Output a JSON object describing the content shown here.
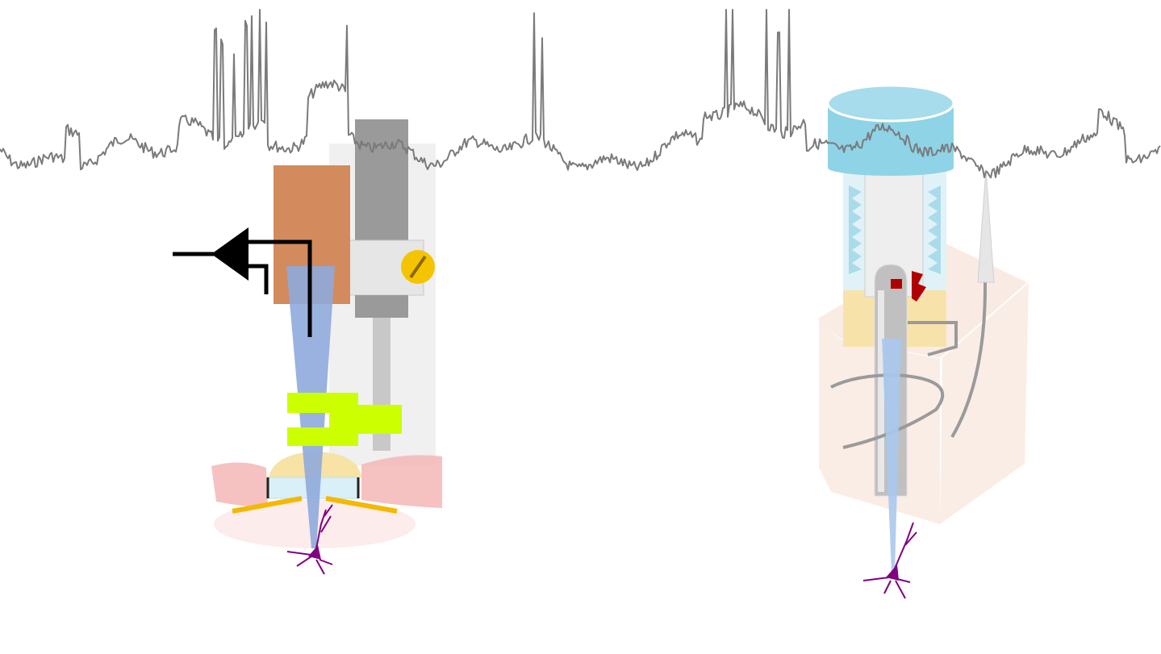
{
  "figure": {
    "background": "#ffffff",
    "trace": {
      "color": "#7a7a7a"
    },
    "left_setup": {
      "headstage_color": "#d38b5d",
      "manipulator_color": "#9a9a9a",
      "pipette_color": "#8faadc",
      "holder_color": "#ccff00",
      "screw_color": "#f5c400",
      "tissue_color": "#f4b6b6",
      "neuron_color": "#800080",
      "arrow_color": "#000000"
    },
    "right_setup": {
      "cap_color": "#8fd3e6",
      "spring_color": "#a9dbeb",
      "collar_color": "#f7e3a6",
      "block_color": "#f9ebe3",
      "wire_color": "#9a9a9a",
      "clamp_color": "#b00000",
      "pipette_color": "#a9c8ee",
      "neuron_color": "#800080"
    }
  }
}
